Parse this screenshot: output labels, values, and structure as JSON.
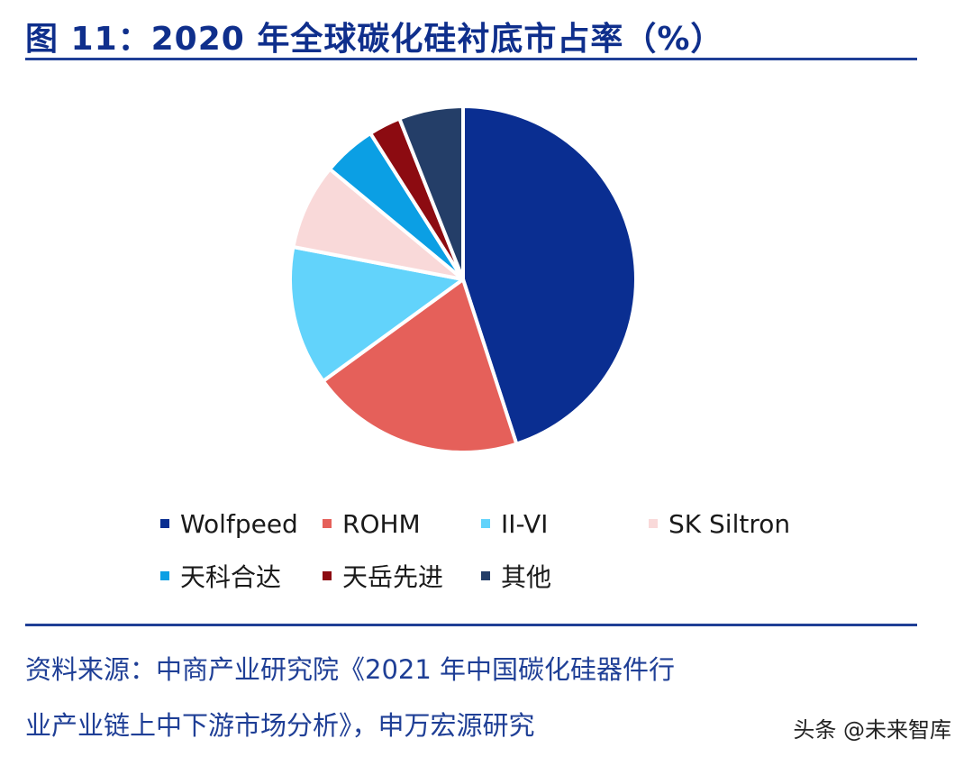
{
  "title": "图 11：2020 年全球碳化硅衬底市占率（%）",
  "source_line1": "资料来源：中商产业研究院《2021 年中国碳化硅器件行",
  "source_line2": "业产业链上中下游市场分析》，申万宏源研究",
  "watermark": "头条 @未来智库",
  "colors": {
    "rule": "#1f3f96",
    "title": "#0f2f8c"
  },
  "chart_data": {
    "type": "pie",
    "title": "",
    "start_angle_deg": 0,
    "direction": "clockwise",
    "legend_position": "bottom",
    "slices": [
      {
        "label": "Wolfpeed",
        "value": 45,
        "color": "#0a2e91"
      },
      {
        "label": "ROHM",
        "value": 20,
        "color": "#e5605a"
      },
      {
        "label": "II-VI",
        "value": 13,
        "color": "#62d3fb"
      },
      {
        "label": "SK Siltron",
        "value": 8,
        "color": "#f9d9d9"
      },
      {
        "label": "天科合达",
        "value": 5,
        "color": "#0b9fe4"
      },
      {
        "label": "天岳先进",
        "value": 3,
        "color": "#8c0b11"
      },
      {
        "label": "其他",
        "value": 6,
        "color": "#243e68"
      }
    ]
  }
}
